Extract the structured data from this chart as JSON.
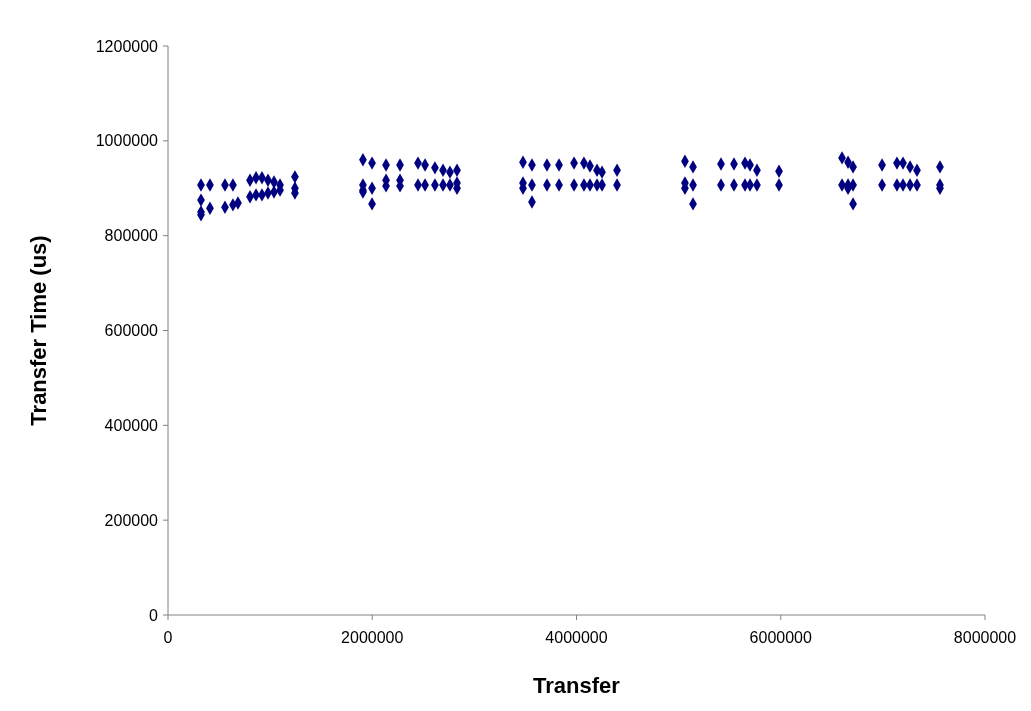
{
  "chart_data": {
    "type": "scatter",
    "xlabel": "Transfer",
    "ylabel": "Transfer Time (us)",
    "xlim": [
      0,
      8000000
    ],
    "ylim": [
      0,
      1200000
    ],
    "xticks": [
      0,
      2000000,
      4000000,
      6000000,
      8000000
    ],
    "yticks": [
      0,
      200000,
      400000,
      600000,
      800000,
      1000000,
      1200000
    ],
    "marker": "diamond",
    "series": [
      {
        "color": "#000080",
        "x": [
          323000,
          323000,
          323000,
          323000,
          411000,
          411000,
          558000,
          558000,
          636000,
          636000,
          685000,
          803000,
          803000,
          862000,
          862000,
          920000,
          920000,
          979000,
          979000,
          1038000,
          1038000,
          1097000,
          1097000,
          1243000,
          1243000,
          1243000,
          1909000,
          1909000,
          1909000,
          1909000,
          1998000,
          1998000,
          1998000,
          2135000,
          2135000,
          2135000,
          2272000,
          2272000,
          2272000,
          2448000,
          2448000,
          2517000,
          2517000,
          2614000,
          2614000,
          2693000,
          2693000,
          2761000,
          2761000,
          2830000,
          2830000,
          2830000,
          3476000,
          3476000,
          3476000,
          3564000,
          3564000,
          3564000,
          3711000,
          3711000,
          3829000,
          3829000,
          3976000,
          3976000,
          4073000,
          4073000,
          4132000,
          4132000,
          4201000,
          4201000,
          4250000,
          4250000,
          4397000,
          4397000,
          5062000,
          5062000,
          5062000,
          5141000,
          5141000,
          5141000,
          5415000,
          5415000,
          5542000,
          5542000,
          5650000,
          5650000,
          5699000,
          5699000,
          5767000,
          5767000,
          5983000,
          5983000,
          6600000,
          6600000,
          6659000,
          6659000,
          6659000,
          6708000,
          6708000,
          6708000,
          6992000,
          6992000,
          7138000,
          7138000,
          7197000,
          7197000,
          7266000,
          7266000,
          7334000,
          7334000,
          7559000,
          7559000,
          7559000
        ],
        "values": [
          907000,
          850000,
          875000,
          844000,
          907000,
          858000,
          907000,
          860000,
          907000,
          865000,
          869000,
          917000,
          882000,
          922000,
          886000,
          922000,
          886000,
          917000,
          890000,
          913000,
          892000,
          907000,
          896000,
          924000,
          900000,
          890000,
          960000,
          907000,
          896000,
          892000,
          953000,
          900000,
          867000,
          949000,
          917000,
          905000,
          949000,
          917000,
          905000,
          953000,
          907000,
          949000,
          907000,
          943000,
          907000,
          938000,
          907000,
          934000,
          907000,
          938000,
          911000,
          900000,
          955000,
          911000,
          900000,
          949000,
          907000,
          871000,
          949000,
          907000,
          949000,
          907000,
          953000,
          907000,
          953000,
          907000,
          947000,
          907000,
          938000,
          907000,
          934000,
          907000,
          938000,
          907000,
          957000,
          911000,
          900000,
          945000,
          907000,
          867000,
          951000,
          907000,
          951000,
          907000,
          953000,
          907000,
          949000,
          907000,
          938000,
          907000,
          936000,
          907000,
          964000,
          907000,
          955000,
          907000,
          900000,
          945000,
          907000,
          867000,
          949000,
          907000,
          953000,
          907000,
          953000,
          907000,
          945000,
          907000,
          938000,
          907000,
          945000,
          907000,
          900000
        ]
      }
    ]
  }
}
